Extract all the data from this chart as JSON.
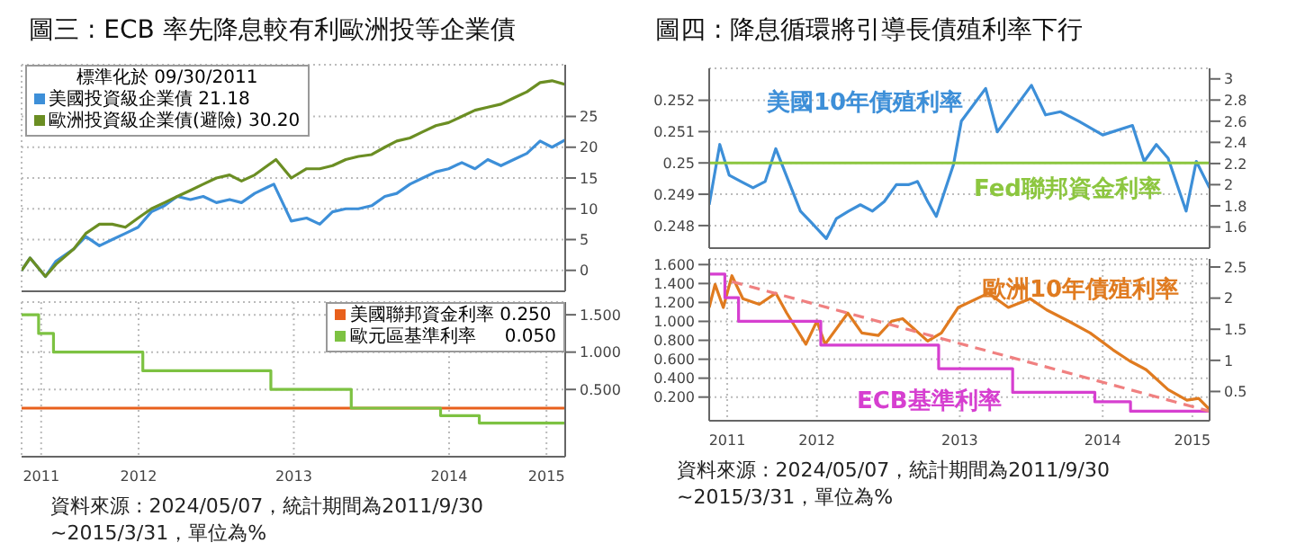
{
  "chart_data": [
    {
      "type": "line",
      "title": "圖三 : ECB 率先降息較有利歐洲投等企業債",
      "legend_title": "標準化於 09/30/2011",
      "legend": "top left",
      "grid": true,
      "tick_labels": "y",
      "xlim": [
        "2011-09-30",
        "2015-03-31"
      ],
      "xticks": [
        {
          "value": "2011-11-15",
          "label": null
        },
        {
          "value": "2012-07-01",
          "label": null
        },
        {
          "value": "2013-07-01",
          "label": null
        },
        {
          "value": "2014-07-01",
          "label": null
        },
        {
          "value": "2015-02-15",
          "label": null
        }
      ],
      "y2lim": [
        -3.4,
        33.4
      ],
      "y2ticks": [
        0,
        5,
        10,
        15,
        20,
        25
      ],
      "series": [
        {
          "name": "美國投資級企業債 21.18",
          "color": "#3d8fd8",
          "axis": "y2",
          "x": [
            "2011-09-30",
            "2011-10-20",
            "2011-11-25",
            "2011-12-20",
            "2012-01-31",
            "2012-02-28",
            "2012-03-31",
            "2012-04-30",
            "2012-05-31",
            "2012-06-30",
            "2012-07-31",
            "2012-08-31",
            "2012-09-30",
            "2012-10-31",
            "2012-11-30",
            "2012-12-31",
            "2013-01-31",
            "2013-02-28",
            "2013-03-31",
            "2013-04-30",
            "2013-05-15",
            "2013-06-25",
            "2013-07-31",
            "2013-08-31",
            "2013-09-30",
            "2013-10-31",
            "2013-11-30",
            "2013-12-31",
            "2014-01-31",
            "2014-02-28",
            "2014-03-31",
            "2014-04-30",
            "2014-05-31",
            "2014-06-30",
            "2014-07-31",
            "2014-08-31",
            "2014-09-30",
            "2014-10-31",
            "2014-11-30",
            "2014-12-31",
            "2015-01-31",
            "2015-02-28",
            "2015-03-31"
          ],
          "values": [
            0,
            2,
            -1,
            1.5,
            3.5,
            5.5,
            4,
            5,
            6,
            7,
            9.5,
            10.5,
            12,
            11.5,
            12,
            11,
            11.5,
            11,
            12.5,
            13.5,
            14,
            8,
            8.5,
            7.5,
            9.5,
            10,
            10,
            10.5,
            12,
            12.5,
            14,
            15,
            16,
            16.5,
            17.5,
            16.5,
            18,
            17,
            18,
            19,
            21,
            20,
            21.2
          ]
        },
        {
          "name": "歐洲投資級企業債(避險) 30.20",
          "color": "#6b8e23",
          "axis": "y2",
          "x": [
            "2011-09-30",
            "2011-10-20",
            "2011-11-25",
            "2011-12-20",
            "2012-01-31",
            "2012-02-28",
            "2012-03-31",
            "2012-04-30",
            "2012-05-31",
            "2012-06-30",
            "2012-07-31",
            "2012-08-31",
            "2012-09-30",
            "2012-10-31",
            "2012-11-30",
            "2012-12-31",
            "2013-01-31",
            "2013-02-28",
            "2013-03-31",
            "2013-04-30",
            "2013-05-20",
            "2013-06-25",
            "2013-07-31",
            "2013-08-31",
            "2013-09-30",
            "2013-10-31",
            "2013-11-30",
            "2013-12-31",
            "2014-01-31",
            "2014-02-28",
            "2014-03-31",
            "2014-04-30",
            "2014-05-31",
            "2014-06-30",
            "2014-07-31",
            "2014-08-31",
            "2014-09-30",
            "2014-10-31",
            "2014-11-30",
            "2014-12-31",
            "2015-01-31",
            "2015-02-28",
            "2015-03-31"
          ],
          "values": [
            0,
            2,
            -1,
            1,
            3.5,
            6,
            7.5,
            7.5,
            7,
            8.5,
            10,
            11,
            12,
            13,
            14,
            15,
            15.5,
            14.5,
            15.5,
            17,
            18,
            15,
            16.5,
            16.5,
            17,
            18,
            18.5,
            18.8,
            20,
            21,
            21.5,
            22.5,
            23.5,
            24,
            25,
            26,
            26.5,
            27,
            28,
            29,
            30.5,
            30.8,
            30.2
          ]
        }
      ]
    },
    {
      "type": "step",
      "legend": "top right",
      "grid": true,
      "annotations": [
        "資料來源 : 2024/05/07，統計期間為2011/9/30 ~2015/3/31，單位為%"
      ],
      "xlim": [
        "2011-09-30",
        "2015-03-31"
      ],
      "xticks": [
        {
          "value": "2011-11-15",
          "label": "2011"
        },
        {
          "value": "2012-07-01",
          "label": "2012"
        },
        {
          "value": "2013-07-01",
          "label": "2013"
        },
        {
          "value": "2014-07-01",
          "label": "2014"
        },
        {
          "value": "2015-02-15",
          "label": "2015"
        }
      ],
      "y2lim": [
        -0.4,
        1.67
      ],
      "y2ticks": [
        {
          "value": 0.5,
          "label": "0.500"
        },
        {
          "value": 1,
          "label": "1.000"
        },
        {
          "value": 1.5,
          "label": "1.500"
        }
      ],
      "series": [
        {
          "name": "美國聯邦資金利率 0.250",
          "color": "#e8601c",
          "axis": "y2",
          "x": [
            "2011-09-30",
            "2015-03-31"
          ],
          "values": [
            0.25,
            0.25
          ]
        },
        {
          "name": "歐元區基準利率     0.050",
          "color": "#7dc242",
          "axis": "y2",
          "x": [
            "2011-09-30",
            "2011-11-09",
            "2011-12-14",
            "2012-07-11",
            "2013-05-08",
            "2013-11-13",
            "2014-06-11",
            "2014-09-10",
            "2015-03-31"
          ],
          "values": [
            1.5,
            1.25,
            1,
            0.75,
            0.5,
            0.25,
            0.15,
            0.05,
            0.05
          ]
        }
      ]
    },
    {
      "type": "line",
      "title": "圖四 : 降息循環將引導長債殖利率下行",
      "grid": true,
      "tick_labels": "y",
      "xlim": [
        "2011-09-30",
        "2015-03-31"
      ],
      "xticks": [
        {
          "value": "2011-11-15",
          "label": null
        },
        {
          "value": "2012-07-01",
          "label": null
        },
        {
          "value": "2013-07-01",
          "label": null
        },
        {
          "value": "2014-07-01",
          "label": null
        },
        {
          "value": "2015-02-15",
          "label": null
        }
      ],
      "ylim": [
        0.24728,
        0.25302
      ],
      "yticks": [
        0.248,
        0.249,
        0.25,
        0.251,
        0.252
      ],
      "y2lim": [
        1.4,
        3.1
      ],
      "y2ticks": [
        1.6,
        1.8,
        2.0,
        2.2,
        2.4,
        2.6,
        2.8,
        3.0
      ],
      "series": [
        {
          "name": "美國10年債殖利率",
          "color": "#3d8fd8",
          "axis": "y2",
          "x": [
            "2011-09-30",
            "2011-10-27",
            "2011-11-20",
            "2011-12-20",
            "2012-01-20",
            "2012-02-20",
            "2012-03-18",
            "2012-04-20",
            "2012-05-20",
            "2012-06-15",
            "2012-07-25",
            "2012-08-20",
            "2012-09-20",
            "2012-10-20",
            "2012-11-20",
            "2012-12-20",
            "2013-01-20",
            "2013-02-20",
            "2013-03-15",
            "2013-04-10",
            "2013-05-02",
            "2013-06-15",
            "2013-07-05",
            "2013-09-05",
            "2013-10-05",
            "2013-12-31",
            "2014-02-05",
            "2014-03-15",
            "2014-05-01",
            "2014-07-01",
            "2014-09-15",
            "2014-10-15",
            "2014-11-15",
            "2014-12-15",
            "2015-01-30",
            "2015-02-25",
            "2015-03-31"
          ],
          "values": [
            1.81,
            2.38,
            2.09,
            2.03,
            1.97,
            2.03,
            2.34,
            2.03,
            1.75,
            1.65,
            1.49,
            1.68,
            1.75,
            1.81,
            1.75,
            1.84,
            2.0,
            2.0,
            2.03,
            1.84,
            1.7,
            2.19,
            2.6,
            2.91,
            2.5,
            2.94,
            2.66,
            2.69,
            2.6,
            2.47,
            2.56,
            2.22,
            2.38,
            2.25,
            1.75,
            2.22,
            1.97
          ]
        },
        {
          "name": "Fed聯邦資金利率",
          "color": "#8cc63f",
          "x": [
            "2011-09-30",
            "2015-03-31"
          ],
          "values": [
            0.25,
            0.25
          ]
        }
      ]
    },
    {
      "type": "line",
      "grid": true,
      "annotations": [
        "資料來源 : 2024/05/07，統計期間為2011/9/30 ~2015/3/31，單位為%"
      ],
      "xlim": [
        "2011-09-30",
        "2015-03-31"
      ],
      "xticks": [
        {
          "value": "2011-11-15",
          "label": "2011"
        },
        {
          "value": "2012-07-01",
          "label": "2012"
        },
        {
          "value": "2013-07-01",
          "label": "2013"
        },
        {
          "value": "2014-07-01",
          "label": "2014"
        },
        {
          "value": "2015-02-15",
          "label": "2015"
        }
      ],
      "ylim": [
        -0.05,
        1.66
      ],
      "yticks": [
        {
          "value": 0.2,
          "label": "0.200"
        },
        {
          "value": 0.4,
          "label": "0.400"
        },
        {
          "value": 0.6,
          "label": "0.600"
        },
        {
          "value": 0.8,
          "label": "0.800"
        },
        {
          "value": 1.0,
          "label": "1.000"
        },
        {
          "value": 1.2,
          "label": "1.200"
        },
        {
          "value": 1.4,
          "label": "1.400"
        },
        {
          "value": 1.6,
          "label": "1.600"
        }
      ],
      "y2lim": [
        0.03,
        2.63
      ],
      "y2ticks": [
        0.5,
        1.0,
        1.5,
        2.0,
        2.5
      ],
      "series": [
        {
          "name": "歐洲10年債殖利率",
          "color": "#e07b20",
          "axis": "y2",
          "x": [
            "2011-09-30",
            "2011-10-15",
            "2011-11-05",
            "2011-11-27",
            "2011-12-25",
            "2012-02-05",
            "2012-03-18",
            "2012-04-15",
            "2012-06-03",
            "2012-07-01",
            "2012-07-22",
            "2012-09-18",
            "2012-10-24",
            "2012-12-05",
            "2013-01-08",
            "2013-02-05",
            "2013-04-10",
            "2013-05-15",
            "2013-06-27",
            "2013-09-12",
            "2013-11-02",
            "2013-12-28",
            "2014-02-08",
            "2014-04-05",
            "2014-05-30",
            "2014-07-27",
            "2014-09-08",
            "2014-10-20",
            "2014-12-15",
            "2015-02-01",
            "2015-03-03",
            "2015-03-31"
          ],
          "values": [
            1.85,
            2.22,
            1.85,
            2.36,
            1.99,
            1.9,
            2.08,
            1.76,
            1.26,
            1.63,
            1.26,
            1.76,
            1.44,
            1.4,
            1.63,
            1.67,
            1.31,
            1.44,
            1.85,
            2.08,
            1.85,
            1.99,
            1.81,
            1.63,
            1.44,
            1.17,
            0.99,
            0.85,
            0.53,
            0.36,
            0.39,
            0.21
          ]
        },
        {
          "name": "ECB基準利率",
          "type": "step",
          "color": "#d63fd0",
          "x": [
            "2011-09-30",
            "2011-11-09",
            "2011-12-14",
            "2012-07-11",
            "2013-05-08",
            "2013-11-13",
            "2014-06-11",
            "2014-09-10",
            "2015-03-31"
          ],
          "values": [
            1.5,
            1.25,
            1,
            0.75,
            0.5,
            0.25,
            0.15,
            0.05,
            0.05
          ]
        },
        {
          "type": "line",
          "color": "#f08080",
          "line_style": "dashed",
          "x": [
            "2011-11-27",
            "2015-03-31"
          ],
          "values": [
            1.42,
            0.05
          ]
        }
      ]
    }
  ]
}
